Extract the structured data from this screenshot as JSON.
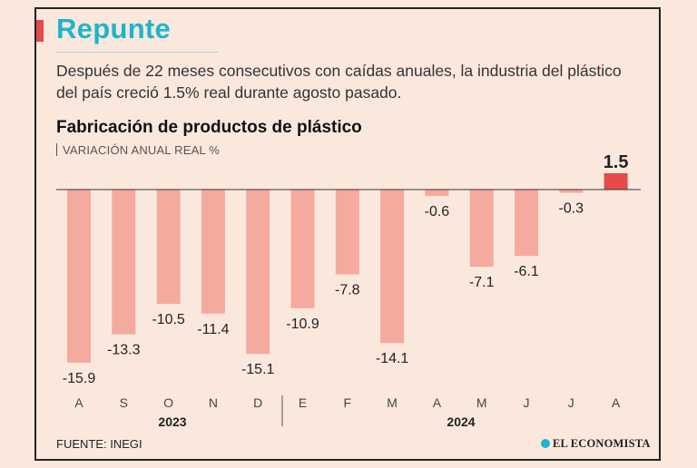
{
  "header": {
    "title": "Repunte",
    "subtitle": "Después de 22 meses consecutivos con caídas anuales, la industria del plástico del país creció 1.5% real durante agosto pasado."
  },
  "chart_data": {
    "type": "bar",
    "title": "Fabricación de productos de plástico",
    "ylabel": "VARIACIÓN ANUAL REAL %",
    "categories": [
      "A",
      "S",
      "O",
      "N",
      "D",
      "E",
      "F",
      "M",
      "A",
      "M",
      "J",
      "J",
      "A"
    ],
    "values": [
      -15.9,
      -13.3,
      -10.5,
      -11.4,
      -15.1,
      -10.9,
      -7.8,
      -14.1,
      -0.6,
      -7.1,
      -6.1,
      -0.3,
      1.5
    ],
    "labels": [
      "-15.9",
      "-13.3",
      "-10.5",
      "-11.4",
      "-15.1",
      "-10.9",
      "-7.8",
      "-14.1",
      "-0.6",
      "-7.1",
      "-6.1",
      "-0.3",
      "1.5"
    ],
    "years": [
      "2023",
      "2024"
    ],
    "colors": {
      "negative": "#f4aa9d",
      "positive": "#e64a4a"
    },
    "grid": false
  },
  "footer": {
    "source": "FUENTE: INEGI",
    "brand": "EL ECONOMISTA"
  }
}
